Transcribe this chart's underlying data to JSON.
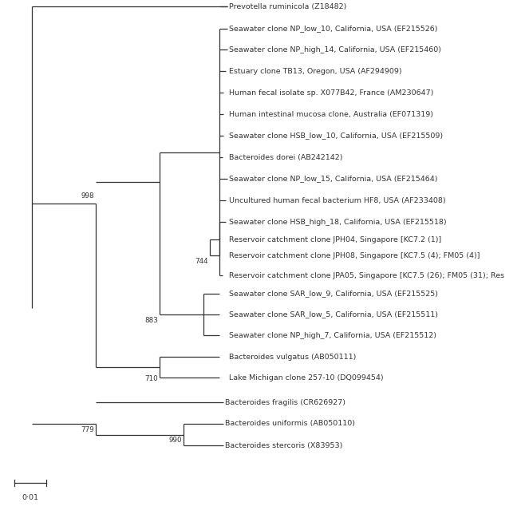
{
  "figsize": [
    6.58,
    6.44
  ],
  "dpi": 100,
  "taxa": [
    "Seawater clone NP_low_10, California, USA (EF215526)",
    "Seawater clone NP_high_14, California, USA (EF215460)",
    "Estuary clone TB13, Oregon, USA (AF294909)",
    "Human fecal isolate sp. X077B42, France (AM230647)",
    "Human intestinal mucosa clone, Australia (EF071319)",
    "Seawater clone HSB_low_10, California, USA (EF215509)",
    "Bacteroides dorei (AB242142)",
    "Seawater clone NP_low_15, California, USA (EF215464)",
    "Uncultured human fecal bacterium HF8, USA (AF233408)",
    "Seawater clone HSB_high_18, California, USA (EF215518)",
    "Reservoir catchment clone JPH04, Singapore [KC7.2 (1)]",
    "Reservoir catchment clone JPH08, Singapore [KC7.5 (4); FM05 (4)]",
    "Reservoir catchment clone JPA05, Singapore [KC7.5 (26); FM05 (31); Res",
    "Seawater clone SAR_low_9, California, USA (EF215525)",
    "Seawater clone SAR_low_5, California, USA (EF215511)",
    "Seawater clone NP_high_7, California, USA (EF215512)",
    "Bacteroides vulgatus (AB050111)",
    "Lake Michigan clone 257-10 (DQ099454)",
    "Bacteroides fragilis (CR626927)",
    "Bacteroides uniformis (AB050110)",
    "Bacteroides stercoris (X83953)"
  ],
  "outgroup": "Prevotella ruminicola (Z18482)",
  "font_size": 6.8,
  "line_color": "#333333",
  "text_color": "#333333",
  "lw": 0.9
}
